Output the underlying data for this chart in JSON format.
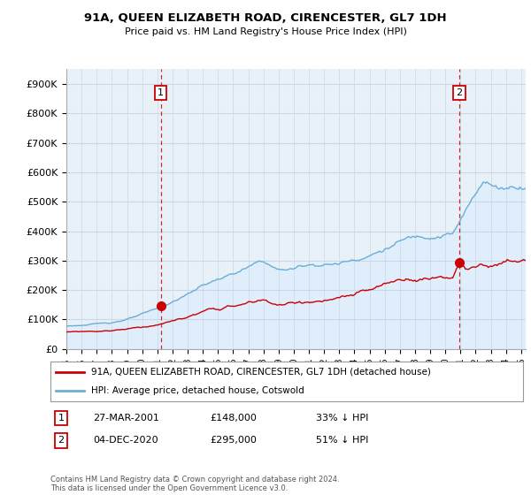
{
  "title": "91A, QUEEN ELIZABETH ROAD, CIRENCESTER, GL7 1DH",
  "subtitle": "Price paid vs. HM Land Registry's House Price Index (HPI)",
  "ylabel_ticks": [
    "£0",
    "£100K",
    "£200K",
    "£300K",
    "£400K",
    "£500K",
    "£600K",
    "£700K",
    "£800K",
    "£900K"
  ],
  "ytick_values": [
    0,
    100000,
    200000,
    300000,
    400000,
    500000,
    600000,
    700000,
    800000,
    900000
  ],
  "ylim": [
    0,
    950000
  ],
  "xlim_start": 1995.0,
  "xlim_end": 2025.3,
  "hpi_color": "#6baed6",
  "hpi_fill_color": "#ddeeff",
  "price_color": "#cc0000",
  "vline_color": "#cc0000",
  "marker1_year": 2001.23,
  "marker1_price": 148000,
  "marker2_year": 2020.92,
  "marker2_price": 295000,
  "legend_label1": "91A, QUEEN ELIZABETH ROAD, CIRENCESTER, GL7 1DH (detached house)",
  "legend_label2": "HPI: Average price, detached house, Cotswold",
  "note1_num": "1",
  "note1_date": "27-MAR-2001",
  "note1_price": "£148,000",
  "note1_pct": "33% ↓ HPI",
  "note2_num": "2",
  "note2_date": "04-DEC-2020",
  "note2_price": "£295,000",
  "note2_pct": "51% ↓ HPI",
  "footer": "Contains HM Land Registry data © Crown copyright and database right 2024.\nThis data is licensed under the Open Government Licence v3.0.",
  "bg_color": "#ffffff",
  "plot_bg_color": "#e8f0f8",
  "grid_color": "#c8d8e8"
}
